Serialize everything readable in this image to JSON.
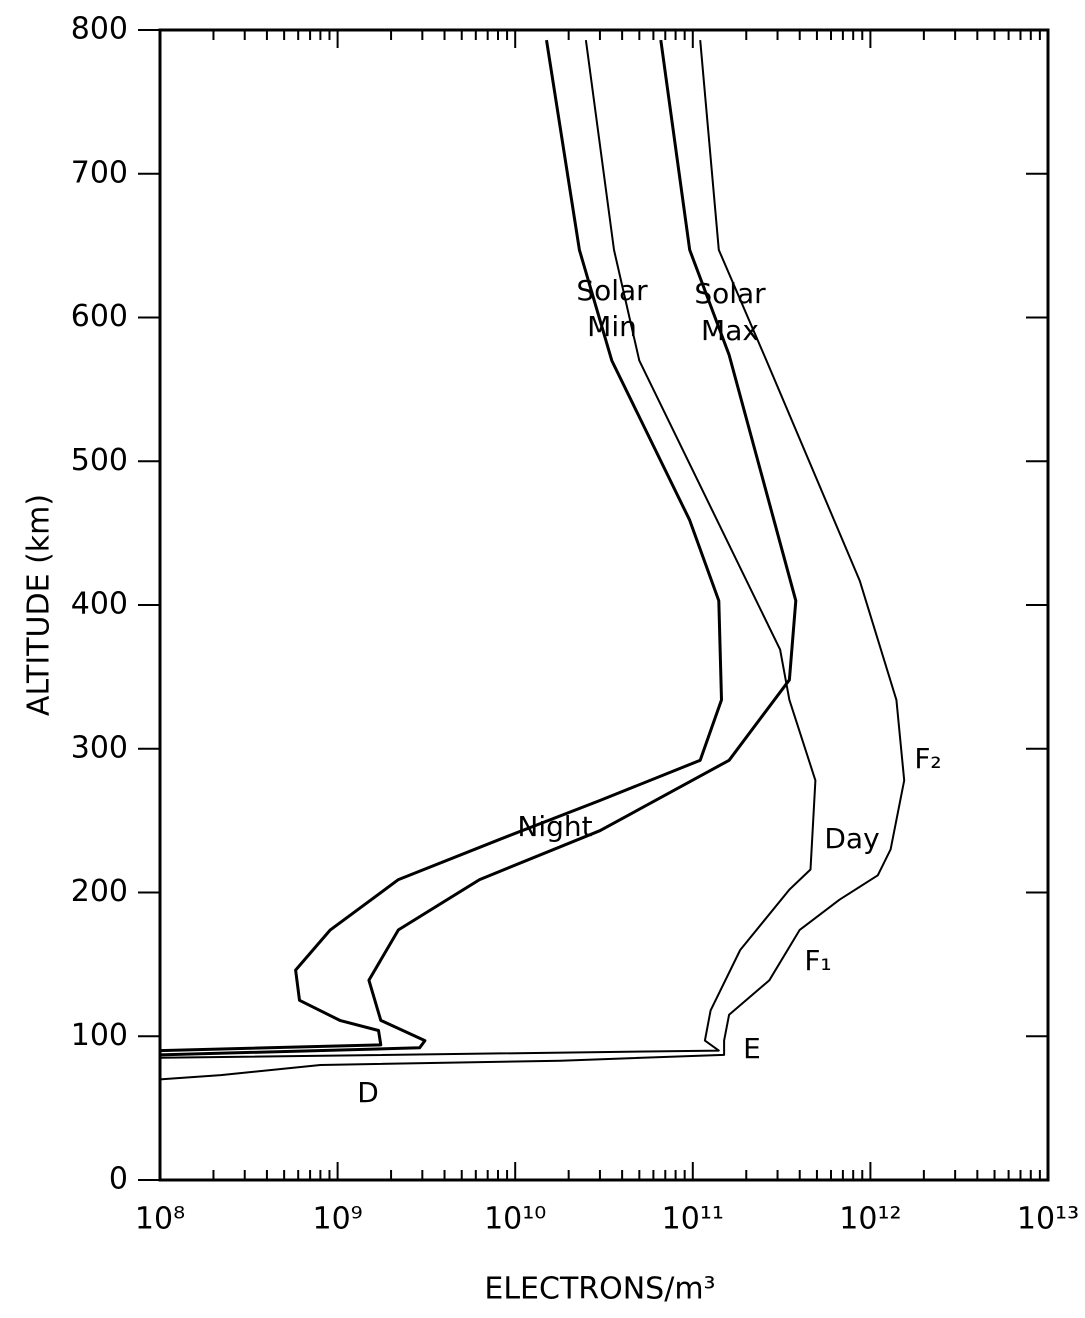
{
  "chart_data": {
    "type": "line",
    "x_label": "ELECTRONS/m³",
    "y_label": "ALTITUDE (km)",
    "xscale": "log",
    "xlim": [
      100000000.0,
      10000000000000.0
    ],
    "xticks": [
      {
        "value": 100000000.0,
        "label": "10⁸"
      },
      {
        "value": 1000000000.0,
        "label": "10⁹"
      },
      {
        "value": 10000000000.0,
        "label": "10¹⁰"
      },
      {
        "value": 100000000000.0,
        "label": "10¹¹"
      },
      {
        "value": 1000000000000.0,
        "label": "10¹²"
      },
      {
        "value": 10000000000000.0,
        "label": "10¹³"
      }
    ],
    "ylim": [
      0,
      800
    ],
    "yticks": [
      0,
      100,
      200,
      300,
      400,
      500,
      600,
      700,
      800
    ],
    "series": [
      {
        "color": "#000000",
        "line_width": 3,
        "x": [
          15000000000.0,
          23000000000.0,
          35000000000.0,
          96000000000.0,
          140000000000.0,
          145000000000.0,
          110000000000.0,
          30000000000.0,
          8200000000.0,
          2200000000.0,
          910000000.0,
          580000000.0,
          610000000.0,
          1030000000.0,
          1700000000.0,
          1750000000.0,
          100000000.0
        ],
        "values": [
          793,
          647,
          570,
          459,
          403,
          334,
          292,
          264,
          237,
          209,
          174,
          146,
          125,
          111,
          104,
          94,
          90
        ]
      },
      {
        "color": "#000000",
        "line_width": 2,
        "x": [
          25000000000.0,
          36000000000.0,
          50000000000.0,
          310000000000.0,
          350000000000.0,
          490000000000.0,
          460000000000.0,
          350000000000.0,
          185000000000.0,
          126000000000.0,
          117000000000.0,
          140000000000.0,
          100000000.0
        ],
        "values": [
          793,
          647,
          570,
          369,
          334,
          278,
          216,
          202,
          160,
          118,
          97,
          90,
          85
        ]
      },
      {
        "color": "#000000",
        "line_width": 3,
        "x": [
          66000000000.0,
          96000000000.0,
          160000000000.0,
          380000000000.0,
          350000000000.0,
          160000000000.0,
          30000000000.0,
          6300000000.0,
          2200000000.0,
          1500000000.0,
          1750000000.0,
          3100000000.0,
          2900000000.0,
          100000000.0
        ],
        "values": [
          793,
          647,
          574,
          403,
          348,
          292,
          243,
          209,
          174,
          139,
          111,
          97,
          92,
          87
        ]
      },
      {
        "color": "#000000",
        "line_width": 2,
        "x": [
          110000000000.0,
          140000000000.0,
          260000000000.0,
          870000000000.0,
          1400000000000.0,
          1550000000000.0,
          1300000000000.0,
          1100000000000.0,
          670000000000.0,
          400000000000.0,
          270000000000.0,
          160000000000.0,
          150000000000.0,
          150000000000.0,
          18000000000.0,
          800000000.0,
          220000000.0,
          100000000.0
        ],
        "values": [
          793,
          647,
          570,
          417,
          334,
          278,
          230,
          212,
          195,
          174,
          139,
          115,
          97,
          87,
          83,
          80,
          73,
          70
        ]
      }
    ],
    "annotations": [
      "Solar",
      "Min",
      "Solar",
      "Max",
      "Night",
      "Day",
      "F₂",
      "F₁",
      "E",
      "D"
    ]
  }
}
